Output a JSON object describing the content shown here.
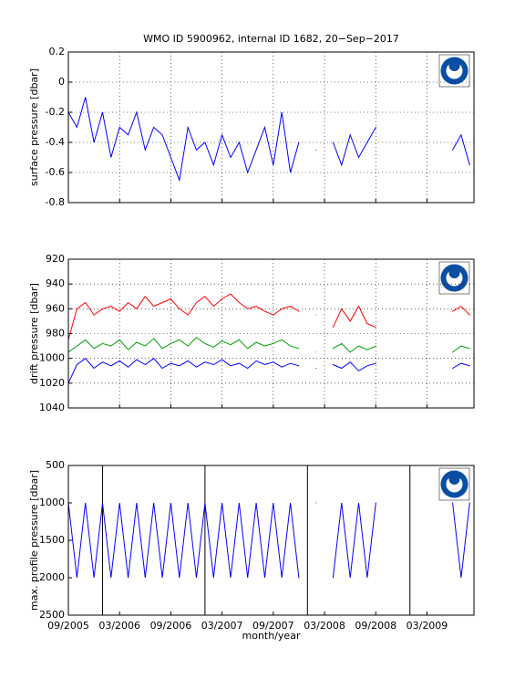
{
  "chart_data": [
    {
      "type": "line",
      "title": "WMO ID 5900962, internal ID 1682, 20−Sep−2017",
      "ylabel": "surface pressure [dbar]",
      "x": [
        "09/2005",
        "10/2005",
        "11/2005",
        "12/2005",
        "01/2006",
        "02/2006",
        "03/2006",
        "04/2006",
        "05/2006",
        "06/2006",
        "07/2006",
        "08/2006",
        "09/2006",
        "10/2006",
        "11/2006",
        "12/2006",
        "01/2007",
        "02/2007",
        "03/2007",
        "04/2007",
        "05/2007",
        "06/2007",
        "07/2007",
        "08/2007",
        "09/2007",
        "10/2007",
        "11/2007",
        "12/2007",
        "01/2008",
        "02/2008",
        "03/2008",
        "04/2008",
        "05/2008",
        "06/2008",
        "07/2008",
        "08/2008",
        "09/2008",
        "10/2008",
        "11/2008",
        "12/2008",
        "01/2009",
        "02/2009",
        "03/2009",
        "04/2009",
        "05/2009",
        "06/2009",
        "07/2009",
        "08/2009"
      ],
      "series": [
        {
          "color": "#0000ff",
          "values": [
            -0.2,
            -0.3,
            -0.1,
            -0.4,
            -0.2,
            -0.5,
            -0.3,
            -0.35,
            -0.2,
            -0.45,
            -0.3,
            -0.35,
            -0.5,
            -0.65,
            -0.3,
            -0.45,
            -0.4,
            -0.55,
            -0.35,
            -0.5,
            -0.4,
            -0.6,
            -0.45,
            -0.3,
            -0.55,
            -0.2,
            -0.6,
            -0.4,
            null,
            -0.45,
            null,
            -0.4,
            -0.55,
            -0.35,
            -0.5,
            -0.4,
            -0.3,
            null,
            null,
            null,
            null,
            null,
            null,
            null,
            null,
            -0.45,
            -0.35,
            -0.55
          ]
        }
      ],
      "ylim": [
        -0.8,
        0.2
      ],
      "yticks": [
        -0.8,
        -0.6,
        -0.4,
        -0.2,
        0,
        0.2
      ],
      "grid": true
    },
    {
      "type": "line",
      "ylabel": "drift pressure [dbar]",
      "x": [
        "09/2005",
        "10/2005",
        "11/2005",
        "12/2005",
        "01/2006",
        "02/2006",
        "03/2006",
        "04/2006",
        "05/2006",
        "06/2006",
        "07/2006",
        "08/2006",
        "09/2006",
        "10/2006",
        "11/2006",
        "12/2006",
        "01/2007",
        "02/2007",
        "03/2007",
        "04/2007",
        "05/2007",
        "06/2007",
        "07/2007",
        "08/2007",
        "09/2007",
        "10/2007",
        "11/2007",
        "12/2007",
        "01/2008",
        "02/2008",
        "03/2008",
        "04/2008",
        "05/2008",
        "06/2008",
        "07/2008",
        "08/2008",
        "09/2008",
        "10/2008",
        "11/2008",
        "12/2008",
        "01/2009",
        "02/2009",
        "03/2009",
        "04/2009",
        "05/2009",
        "06/2009",
        "07/2009",
        "08/2009"
      ],
      "series": [
        {
          "color": "#0000ff",
          "values": [
            1020,
            1005,
            1000,
            1008,
            1003,
            1006,
            1002,
            1007,
            1001,
            1005,
            1000,
            1008,
            1004,
            1006,
            1002,
            1007,
            1003,
            1005,
            1001,
            1006,
            1004,
            1008,
            1002,
            1005,
            1003,
            1007,
            1004,
            1006,
            null,
            1008,
            null,
            1005,
            1008,
            1003,
            1010,
            1006,
            1004,
            null,
            null,
            null,
            null,
            null,
            null,
            null,
            null,
            1008,
            1004,
            1006
          ]
        },
        {
          "color": "#00a000",
          "values": [
            995,
            990,
            985,
            992,
            988,
            990,
            985,
            993,
            987,
            990,
            984,
            992,
            988,
            985,
            990,
            983,
            988,
            991,
            986,
            989,
            985,
            992,
            987,
            990,
            988,
            985,
            990,
            992,
            null,
            995,
            null,
            992,
            988,
            995,
            990,
            993,
            990,
            null,
            null,
            null,
            null,
            null,
            null,
            null,
            null,
            995,
            990,
            992
          ]
        },
        {
          "color": "#ff0000",
          "values": [
            985,
            960,
            955,
            965,
            960,
            958,
            962,
            955,
            960,
            950,
            958,
            955,
            952,
            960,
            965,
            955,
            950,
            958,
            952,
            948,
            955,
            960,
            958,
            962,
            965,
            960,
            958,
            962,
            null,
            965,
            null,
            975,
            960,
            970,
            958,
            972,
            975,
            null,
            null,
            null,
            null,
            null,
            null,
            null,
            null,
            962,
            958,
            965
          ]
        }
      ],
      "ylim": [
        1040,
        920
      ],
      "yticks": [
        920,
        940,
        960,
        980,
        1000,
        1020,
        1040
      ],
      "grid": true
    },
    {
      "type": "line",
      "ylabel": "max. profile pressure [dbar]",
      "xlabel": "month/year",
      "x": [
        "09/2005",
        "10/2005",
        "11/2005",
        "12/2005",
        "01/2006",
        "02/2006",
        "03/2006",
        "04/2006",
        "05/2006",
        "06/2006",
        "07/2006",
        "08/2006",
        "09/2006",
        "10/2006",
        "11/2006",
        "12/2006",
        "01/2007",
        "02/2007",
        "03/2007",
        "04/2007",
        "05/2007",
        "06/2007",
        "07/2007",
        "08/2007",
        "09/2007",
        "10/2007",
        "11/2007",
        "12/2007",
        "01/2008",
        "02/2008",
        "03/2008",
        "04/2008",
        "05/2008",
        "06/2008",
        "07/2008",
        "08/2008",
        "09/2008",
        "10/2008",
        "11/2008",
        "12/2008",
        "01/2009",
        "02/2009",
        "03/2009",
        "04/2009",
        "05/2009",
        "06/2009",
        "07/2009",
        "08/2009"
      ],
      "series": [
        {
          "color": "#0000ff",
          "values": [
            1000,
            2000,
            1000,
            2000,
            1000,
            2000,
            1000,
            2000,
            1000,
            2000,
            1000,
            2000,
            1000,
            2000,
            1000,
            2000,
            1000,
            2000,
            1000,
            2000,
            1000,
            2000,
            1000,
            2000,
            1000,
            2000,
            1000,
            2000,
            null,
            1000,
            null,
            2000,
            1000,
            2000,
            1000,
            2000,
            1000,
            null,
            null,
            null,
            null,
            null,
            null,
            null,
            null,
            1000,
            2000,
            1000
          ]
        }
      ],
      "ylim": [
        2500,
        500
      ],
      "yticks": [
        500,
        1000,
        1500,
        2000,
        2500
      ],
      "grid": false,
      "xlim": [
        "09/2005",
        "08/2009"
      ],
      "xticks": [
        "09/2005",
        "03/2006",
        "09/2006",
        "03/2007",
        "09/2007",
        "03/2008",
        "09/2008",
        "03/2009"
      ],
      "vlines": [
        "01/2006",
        "01/2007",
        "01/2008",
        "01/2009"
      ]
    }
  ]
}
